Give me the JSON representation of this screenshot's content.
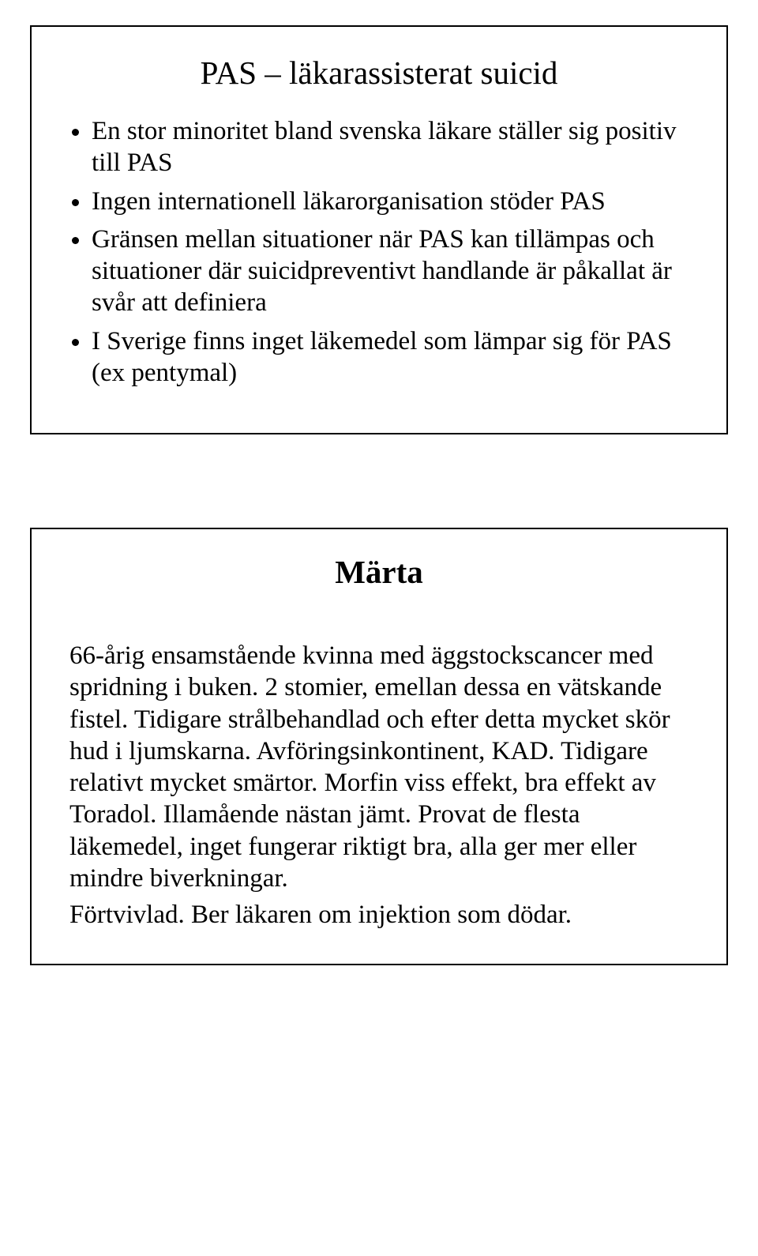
{
  "slide1": {
    "title": "PAS – läkarassisterat suicid",
    "bullets": [
      "En stor minoritet bland svenska läkare ställer sig positiv till PAS",
      "Ingen internationell läkarorganisation stöder PAS",
      "Gränsen mellan situationer när PAS kan tillämpas och situationer där suicidpreventivt handlande är påkallat är svår att definiera",
      "I Sverige finns inget läkemedel som lämpar sig för PAS (ex pentymal)"
    ]
  },
  "slide2": {
    "title": "Märta",
    "para1": "66-årig ensamstående kvinna med äggstockscancer med spridning i buken. 2 stomier, emellan dessa en vätskande fistel. Tidigare strålbehandlad och efter detta mycket skör hud i ljumskarna. Avföringsinkontinent, KAD. Tidigare relativt mycket smärtor. Morfin viss effekt, bra effekt av Toradol. Illamående nästan jämt. Provat de flesta läkemedel, inget fungerar riktigt bra, alla ger mer eller mindre biverkningar.",
    "para2": "Förtvivlad. Ber läkaren om injektion som dödar."
  }
}
